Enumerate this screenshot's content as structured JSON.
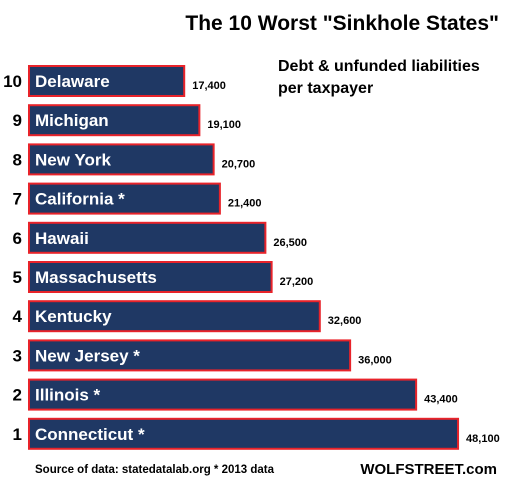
{
  "chart_data": {
    "type": "bar",
    "orientation": "horizontal",
    "title": "The 10 Worst \"Sinkhole States\"",
    "subtitle": "Debt & unfunded liabilities per taxpayer",
    "categories": [
      "Delaware",
      "Michigan",
      "New York",
      "California *",
      "Hawaii",
      "Massachusetts",
      "Kentucky",
      "New Jersey *",
      "Illinois *",
      "Connecticut *"
    ],
    "ranks": [
      "10",
      "9",
      "8",
      "7",
      "6",
      "5",
      "4",
      "3",
      "2",
      "1"
    ],
    "values": [
      17400,
      19100,
      20700,
      21400,
      26500,
      27200,
      32600,
      36000,
      43400,
      48100
    ],
    "value_labels": [
      "17,400",
      "19,100",
      "20,700",
      "21,400",
      "26,500",
      "27,200",
      "32,600",
      "36,000",
      "43,400",
      "48,100"
    ],
    "bar_color": "#1f3864",
    "bar_border_color": "#e8232a",
    "grid": false,
    "legend": "none"
  },
  "footer": {
    "source": "Source of data: statedatalab.org   * 2013 data",
    "brand": "WOLFSTREET.com"
  }
}
